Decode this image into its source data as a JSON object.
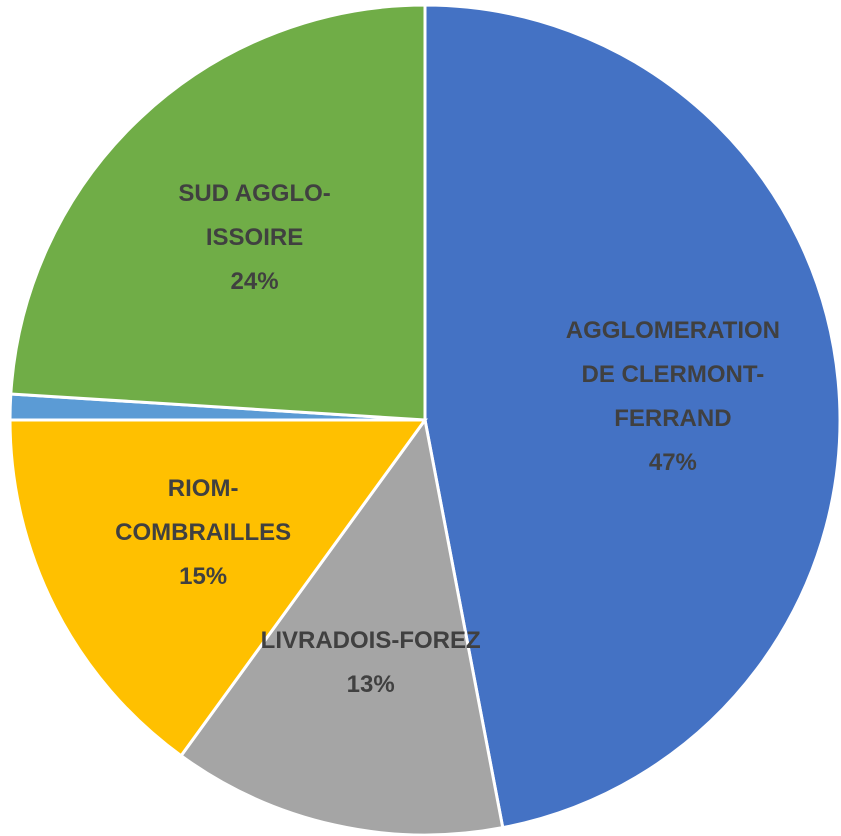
{
  "chart_data": {
    "type": "pie",
    "categories": [
      "AGGLOMERATION\nDE CLERMONT-\nFERRAND",
      "LIVRADOIS-FOREZ",
      "RIOM-\nCOMBRAILLES",
      null,
      "SUD AGGLO-\nISSOIRE"
    ],
    "values": [
      47,
      13,
      15,
      1,
      24
    ],
    "value_labels": [
      "47%",
      "13%",
      "15%",
      null,
      "24%"
    ],
    "colors": [
      "#4472c4",
      "#a5a5a5",
      "#ffc000",
      "#5b9bd5",
      "#70ad47"
    ]
  }
}
